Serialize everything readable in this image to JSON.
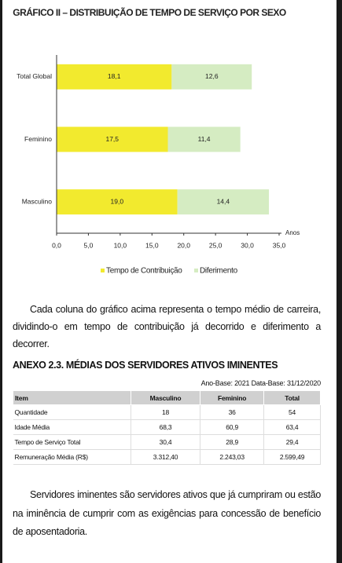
{
  "chart_data": {
    "type": "bar",
    "orientation": "horizontal",
    "stacked": true,
    "title": "GRÁFICO II – DISTRIBUIÇÃO DE TEMPO DE SERVIÇO POR SEXO",
    "categories": [
      "Total Global",
      "Feminino",
      "Masculino"
    ],
    "series": [
      {
        "name": "Tempo de Contribuição",
        "color": "#f2ea2e",
        "values": [
          18.1,
          17.5,
          19.0
        ],
        "value_labels": [
          "18,1",
          "17,5",
          "19,0"
        ]
      },
      {
        "name": "Diferimento",
        "color": "#d5ecc2",
        "values": [
          12.6,
          11.4,
          14.4
        ],
        "value_labels": [
          "12,6",
          "11,4",
          "14,4"
        ]
      }
    ],
    "x_label": "Anos",
    "xlim": [
      0,
      35
    ],
    "xticks": [
      {
        "value": 0,
        "label": "0,0"
      },
      {
        "value": 5,
        "label": "5,0"
      },
      {
        "value": 10,
        "label": "10,0"
      },
      {
        "value": 15,
        "label": "15,0"
      },
      {
        "value": 20,
        "label": "20,0"
      },
      {
        "value": 25,
        "label": "25,0"
      },
      {
        "value": 30,
        "label": "30,0"
      },
      {
        "value": 35,
        "label": "35,0"
      }
    ],
    "legend": "bottom"
  },
  "paragraph_1": "Cada coluna do gráfico acima representa o tempo médio de carreira, dividindo-o em tempo de contribuição já decorrido e diferimento a decorrer.",
  "table": {
    "title": "ANEXO 2.3. MÉDIAS DOS SERVIDORES ATIVOS IMINENTES",
    "subtitle": "Ano-Base: 2021 Data-Base: 31/12/2020",
    "header": [
      "Item",
      "Masculino",
      "Feminino",
      "Total"
    ],
    "rows": [
      [
        "Quantidade",
        "18",
        "36",
        "54"
      ],
      [
        "Idade Média",
        "68,3",
        "60,9",
        "63,4"
      ],
      [
        "Tempo de Serviço Total",
        "30,4",
        "28,9",
        "29,4"
      ],
      [
        "Remuneração Média (R$)",
        "3.312,40",
        "2.243,03",
        "2.599,49"
      ]
    ]
  },
  "paragraph_2": "Servidores iminentes são servidores ativos que já cumpriram ou estão na iminência de cumprir com as exigências para concessão de benefício de aposentadoria."
}
